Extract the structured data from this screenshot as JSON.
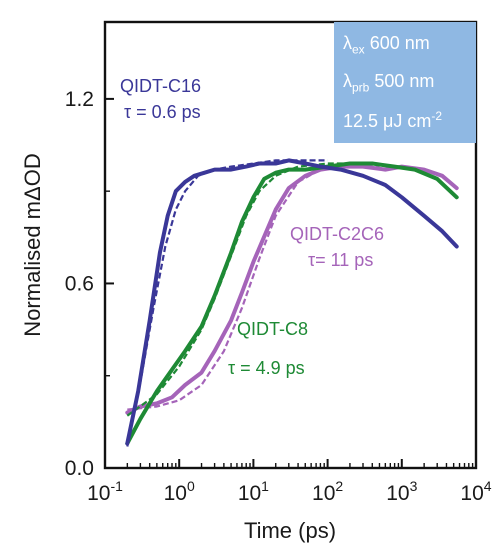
{
  "chart_data": {
    "type": "line",
    "xlabel": "Time (ps)",
    "ylabel": "Normalised mΔOD",
    "xscale": "log",
    "xlim": [
      0.1,
      10000
    ],
    "ylim": [
      0,
      1.45
    ],
    "xticks": [
      {
        "value": 0.1,
        "base": "10",
        "exp": "-1"
      },
      {
        "value": 1,
        "base": "10",
        "exp": "0"
      },
      {
        "value": 10,
        "base": "10",
        "exp": "1"
      },
      {
        "value": 100,
        "base": "10",
        "exp": "2"
      },
      {
        "value": 1000,
        "base": "10",
        "exp": "3"
      },
      {
        "value": 10000,
        "base": "10",
        "exp": "4"
      }
    ],
    "yticks": [
      {
        "value": 0.0,
        "label": "0.0"
      },
      {
        "value": 0.6,
        "label": "0.6"
      },
      {
        "value": 1.2,
        "label": "1.2"
      }
    ],
    "grid": false,
    "series": [
      {
        "name": "QIDT-C16",
        "tau": "τ = 0.6 ps",
        "color": "#3a3798",
        "x": [
          0.2,
          0.28,
          0.4,
          0.55,
          0.7,
          0.9,
          1.2,
          1.6,
          2.2,
          3,
          5,
          8,
          12,
          20,
          30,
          50,
          80,
          150,
          300,
          600,
          1000,
          2000,
          3500,
          5500
        ],
        "y": [
          0.08,
          0.25,
          0.48,
          0.7,
          0.82,
          0.9,
          0.93,
          0.95,
          0.96,
          0.97,
          0.97,
          0.98,
          0.99,
          0.99,
          1.0,
          0.99,
          0.98,
          0.97,
          0.95,
          0.92,
          0.88,
          0.82,
          0.77,
          0.72
        ],
        "fit_x": [
          0.2,
          0.3,
          0.45,
          0.65,
          0.9,
          1.2,
          1.8,
          3,
          5,
          10,
          20,
          50,
          100
        ],
        "fit_y": [
          0.07,
          0.28,
          0.52,
          0.72,
          0.84,
          0.9,
          0.95,
          0.97,
          0.98,
          0.99,
          1.0,
          1.0,
          1.0
        ]
      },
      {
        "name": "QIDT-C8",
        "tau": "τ = 4.9 ps",
        "color": "#1e8a35",
        "x": [
          0.2,
          0.3,
          0.5,
          0.8,
          1.2,
          2,
          3,
          5,
          7,
          10,
          14,
          20,
          30,
          50,
          100,
          200,
          400,
          800,
          1500,
          3000,
          5500
        ],
        "y": [
          0.08,
          0.16,
          0.25,
          0.32,
          0.38,
          0.46,
          0.56,
          0.7,
          0.8,
          0.88,
          0.94,
          0.96,
          0.97,
          0.97,
          0.98,
          0.99,
          0.99,
          0.98,
          0.97,
          0.94,
          0.88
        ],
        "fit_x": [
          0.2,
          0.5,
          1,
          2,
          3,
          5,
          8,
          12,
          20,
          40,
          100,
          300
        ],
        "fit_y": [
          0.17,
          0.24,
          0.33,
          0.45,
          0.55,
          0.69,
          0.82,
          0.9,
          0.95,
          0.98,
          0.99,
          0.99
        ]
      },
      {
        "name": "QIDT-C2C6",
        "tau": "τ= 11 ps",
        "color": "#a564b9",
        "x": [
          0.2,
          0.3,
          0.5,
          0.8,
          1.2,
          2,
          3,
          5,
          7,
          10,
          15,
          20,
          30,
          50,
          80,
          150,
          300,
          600,
          1000,
          2000,
          3500,
          5500
        ],
        "y": [
          0.18,
          0.2,
          0.21,
          0.23,
          0.27,
          0.31,
          0.38,
          0.48,
          0.57,
          0.67,
          0.77,
          0.84,
          0.91,
          0.95,
          0.97,
          0.98,
          0.98,
          0.97,
          0.98,
          0.97,
          0.95,
          0.91
        ],
        "fit_x": [
          0.2,
          0.5,
          1,
          2,
          4,
          7,
          12,
          20,
          40,
          80,
          200,
          500
        ],
        "fit_y": [
          0.19,
          0.2,
          0.22,
          0.27,
          0.38,
          0.52,
          0.68,
          0.82,
          0.93,
          0.97,
          0.98,
          0.98
        ]
      }
    ],
    "info_box": {
      "line1": {
        "symbol": "λ",
        "sub": "ex",
        "text": "600 nm"
      },
      "line2": {
        "symbol": "λ",
        "sub": "prb",
        "text": "500 nm"
      },
      "line3": {
        "text": "12.5 μJ cm",
        "sup": "-2"
      },
      "color": "#8fb8e3"
    }
  }
}
